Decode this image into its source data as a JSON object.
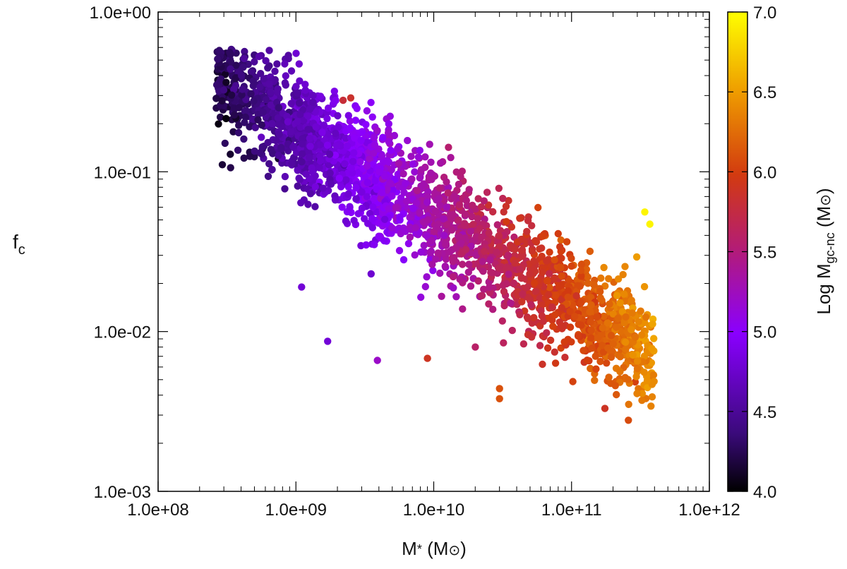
{
  "chart_data": {
    "type": "scatter",
    "title": "",
    "xlabel": "M* (M⊙)",
    "xlabel_parts": {
      "main": "M",
      "star": "*",
      "unit_open": " (M",
      "unit_sym": "⊙",
      "unit_close": ")"
    },
    "ylabel": "fc",
    "ylabel_parts": {
      "main": "f",
      "sub": "c"
    },
    "x_scale": "log",
    "y_scale": "log",
    "xlim": [
      100000000,
      1000000000000
    ],
    "ylim": [
      0.001,
      1
    ],
    "x_ticks": [
      "1.0e+08",
      "1.0e+09",
      "1.0e+10",
      "1.0e+11",
      "1.0e+12"
    ],
    "y_ticks": [
      "1.0e-03",
      "1.0e-02",
      "1.0e-01",
      "1.0e+00"
    ],
    "colorbar": {
      "label": "Log Mgc-nc (M⊙)",
      "label_parts": {
        "main": "Log M",
        "sub": "gc-nc",
        "unit_open": " (M",
        "unit_sym": "⊙",
        "unit_close": ")"
      },
      "range": [
        4.0,
        7.0
      ],
      "ticks": [
        "4.0",
        "4.5",
        "5.0",
        "5.5",
        "6.0",
        "6.5",
        "7.0"
      ],
      "palette": "gnuplot black-purple-red-orange-yellow"
    },
    "points_note": "Approx. 2500 galaxies; log f_c ≈ -0.55·(log M* - 8.5) - 0.5 with scatter; color = log M_gc-nc rising with M*.",
    "outliers": [
      {
        "x": 340000000000.0,
        "y": 0.056,
        "c": 6.95
      },
      {
        "x": 370000000000.0,
        "y": 0.047,
        "c": 6.95
      },
      {
        "x": 2200000000.0,
        "y": 0.28,
        "c": 5.8
      },
      {
        "x": 2500000000.0,
        "y": 0.29,
        "c": 5.85
      },
      {
        "x": 1700000000.0,
        "y": 0.0087,
        "c": 4.8
      },
      {
        "x": 3900000000.0,
        "y": 0.0066,
        "c": 5.2
      },
      {
        "x": 9000000000.0,
        "y": 0.0068,
        "c": 5.9
      },
      {
        "x": 1100000000.0,
        "y": 0.019,
        "c": 4.8
      },
      {
        "x": 30000000000.0,
        "y": 0.0038,
        "c": 6.1
      },
      {
        "x": 30000000000.0,
        "y": 0.0044,
        "c": 6.1
      }
    ]
  }
}
